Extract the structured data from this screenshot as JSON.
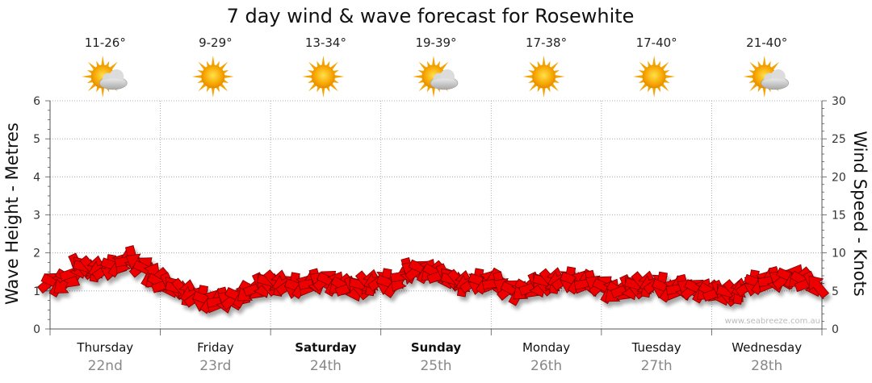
{
  "chart_data": {
    "type": "line",
    "title": "7 day wind & wave forecast for Rosewhite",
    "ylabel_left": "Wave Height - Metres",
    "ylabel_right": "Wind Speed - Knots",
    "ylim_left": [
      0,
      6
    ],
    "ylim_right": [
      0,
      30
    ],
    "left_ticks": [
      "0",
      "1",
      "2",
      "3",
      "4",
      "5",
      "6"
    ],
    "right_ticks": [
      "0",
      "5",
      "10",
      "15",
      "20",
      "25",
      "30"
    ],
    "grid": true,
    "credit": "www.seabreeze.com.au",
    "days": [
      {
        "name": "Thursday",
        "date": "22nd",
        "temp": "11-26°",
        "icon": "sun-cloud-icon",
        "bold": false
      },
      {
        "name": "Friday",
        "date": "23rd",
        "temp": "9-29°",
        "icon": "sun-icon",
        "bold": false
      },
      {
        "name": "Saturday",
        "date": "24th",
        "temp": "13-34°",
        "icon": "sun-icon",
        "bold": true
      },
      {
        "name": "Sunday",
        "date": "25th",
        "temp": "19-39°",
        "icon": "sun-cloud-icon",
        "bold": true
      },
      {
        "name": "Monday",
        "date": "26th",
        "temp": "17-38°",
        "icon": "sun-icon",
        "bold": false
      },
      {
        "name": "Tuesday",
        "date": "27th",
        "temp": "17-40°",
        "icon": "sun-icon",
        "bold": false
      },
      {
        "name": "Wednesday",
        "date": "28th",
        "temp": "21-40°",
        "icon": "sun-cloud-icon",
        "bold": false
      }
    ],
    "wind_series": {
      "name": "Wind Speed",
      "axis": "right",
      "x_days": [
        0,
        0.125,
        0.25,
        0.375,
        0.5,
        0.625,
        0.75,
        0.875,
        1,
        1.125,
        1.25,
        1.375,
        1.5,
        1.625,
        1.75,
        1.875,
        2,
        2.125,
        2.25,
        2.375,
        2.5,
        2.625,
        2.75,
        2.875,
        3,
        3.125,
        3.25,
        3.375,
        3.5,
        3.625,
        3.75,
        3.875,
        4,
        4.125,
        4.25,
        4.375,
        4.5,
        4.625,
        4.75,
        4.875,
        5,
        5.125,
        5.25,
        5.375,
        5.5,
        5.625,
        5.75,
        5.875,
        6,
        6.125,
        6.25,
        6.375,
        6.5,
        6.625,
        6.75,
        6.875,
        7
      ],
      "knots": [
        6.2,
        5.8,
        8.2,
        8.0,
        7.8,
        8.5,
        9.2,
        7.8,
        6.0,
        5.5,
        4.8,
        4.0,
        3.6,
        3.8,
        4.5,
        5.4,
        6.2,
        6.0,
        5.5,
        6.0,
        6.5,
        5.8,
        5.2,
        6.0,
        6.4,
        5.8,
        7.6,
        7.9,
        7.3,
        6.6,
        6.0,
        6.2,
        6.3,
        5.5,
        4.8,
        5.5,
        6.2,
        6.5,
        6.4,
        6.0,
        5.8,
        4.7,
        5.4,
        5.9,
        6.0,
        5.2,
        5.4,
        5.3,
        4.8,
        4.6,
        5.0,
        6.0,
        6.3,
        6.5,
        7.0,
        6.0,
        5.5
      ]
    }
  }
}
